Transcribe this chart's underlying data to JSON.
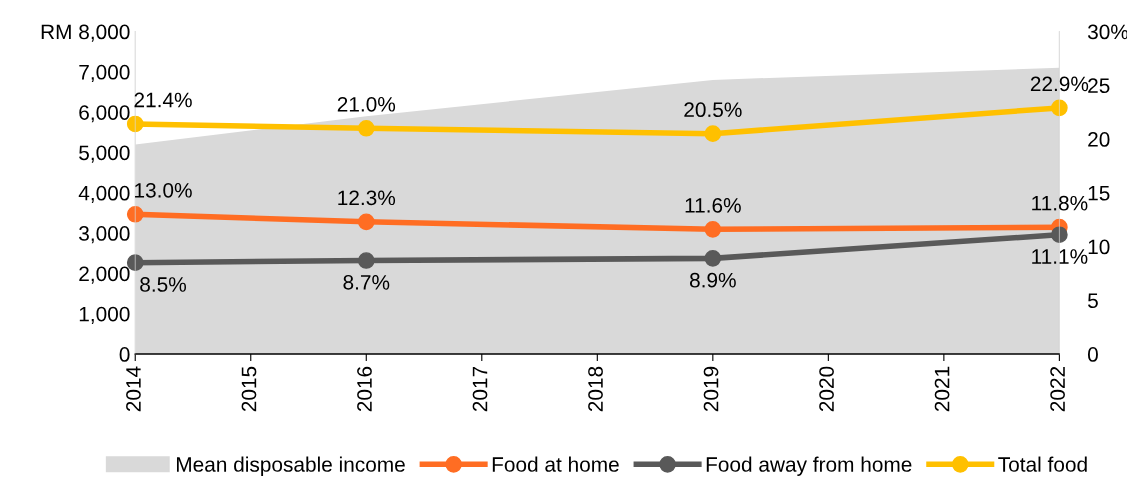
{
  "chart_data": {
    "type": "line",
    "x": [
      2014,
      2016,
      2019,
      2022
    ],
    "xlim": [
      2014,
      2022
    ],
    "xticks": [
      2014,
      2015,
      2016,
      2017,
      2018,
      2019,
      2020,
      2021,
      2022
    ],
    "ylim": [
      0,
      8000
    ],
    "yticks": [
      0,
      {
        "value": 1000,
        "label": "1,000"
      },
      {
        "value": 2000,
        "label": "2,000"
      },
      {
        "value": 3000,
        "label": "3,000"
      },
      {
        "value": 4000,
        "label": "4,000"
      },
      {
        "value": 5000,
        "label": "5,000"
      },
      {
        "value": 6000,
        "label": "6,000"
      },
      {
        "value": 7000,
        "label": "7,000"
      },
      {
        "value": 8000,
        "label": "RM 8,000"
      }
    ],
    "y2lim": [
      0,
      30
    ],
    "y2ticks": [
      0,
      5,
      10,
      15,
      20,
      25,
      {
        "value": 30,
        "label": "30%"
      }
    ],
    "series": [
      {
        "name": "Mean disposable income",
        "type": "area",
        "marker": "none",
        "color": "#d9d9d9",
        "values": [
          5200,
          5900,
          6800,
          7100
        ]
      },
      {
        "name": "Food at home",
        "axis": "y2",
        "color": "#ff6d23",
        "values": [
          13.0,
          12.3,
          11.6,
          11.8
        ],
        "value_labels": [
          "13.0%",
          "12.3%",
          "11.6%",
          "11.8%"
        ]
      },
      {
        "name": "Food away from home",
        "axis": "y2",
        "color": "#595959",
        "values": [
          8.5,
          8.7,
          8.9,
          11.1
        ],
        "value_labels": [
          "8.5%",
          "8.7%",
          "8.9%",
          "11.1%"
        ]
      },
      {
        "name": "Total food",
        "axis": "y2",
        "color": "#ffc000",
        "values": [
          21.4,
          21.0,
          20.5,
          22.9
        ],
        "value_labels": [
          "21.4%",
          "21.0%",
          "20.5%",
          "22.9%"
        ]
      }
    ],
    "marker": "circle",
    "line_style": "solid",
    "legend": "bottom",
    "grid": false
  }
}
